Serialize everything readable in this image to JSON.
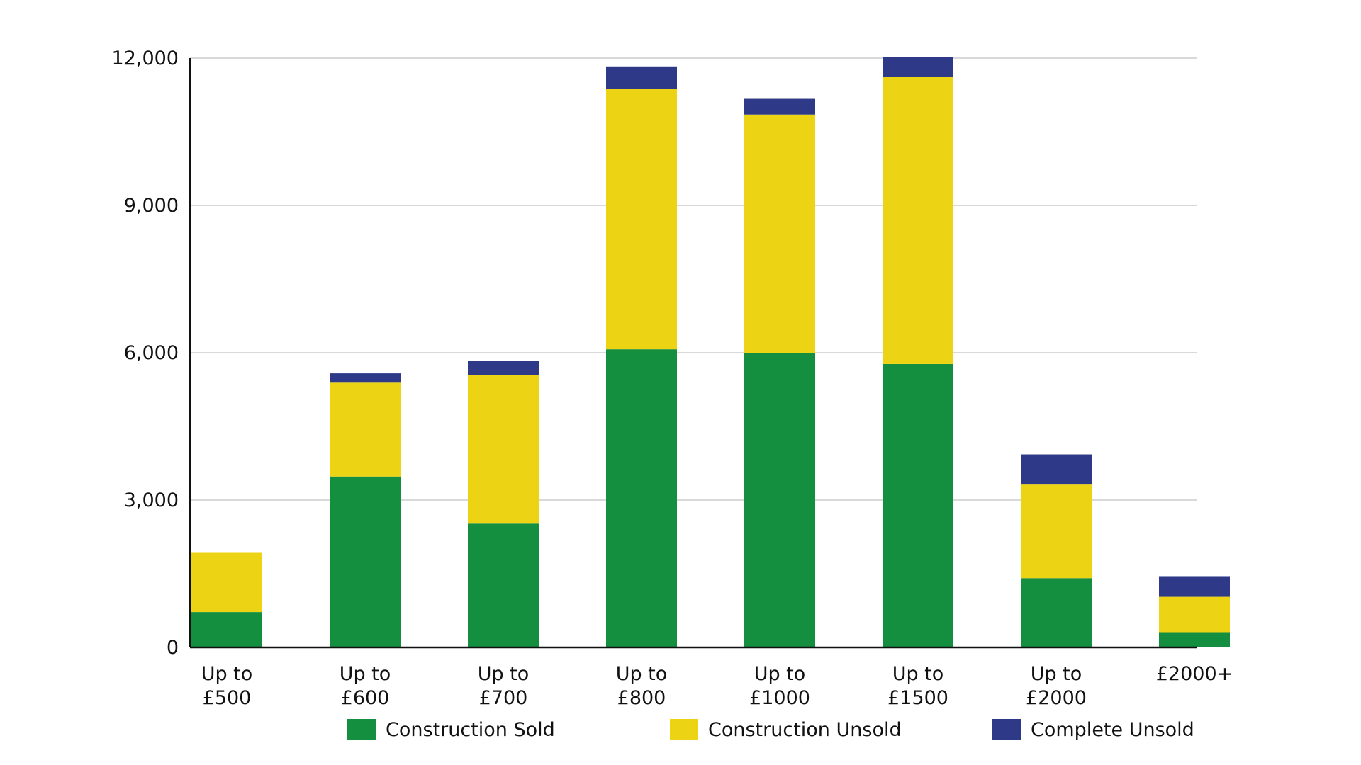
{
  "chart_data": {
    "type": "bar",
    "stacked": true,
    "categories": [
      [
        "Up to",
        "£500"
      ],
      [
        "Up to",
        "£600"
      ],
      [
        "Up to",
        "£700"
      ],
      [
        "Up to",
        "£800"
      ],
      [
        "Up to",
        "£1000"
      ],
      [
        "Up to",
        "£1500"
      ],
      [
        "Up to",
        "£2000"
      ],
      [
        "£2000+"
      ]
    ],
    "series": [
      {
        "name": "Construction Sold",
        "color": "#138f3f",
        "values": [
          720,
          3480,
          2520,
          6070,
          6000,
          5770,
          1410,
          310
        ]
      },
      {
        "name": "Construction Unsold",
        "color": "#ecd414",
        "values": [
          1220,
          1910,
          3020,
          5300,
          4850,
          5850,
          1920,
          720
        ]
      },
      {
        "name": "Complete Unsold",
        "color": "#2e3a87",
        "values": [
          0,
          190,
          290,
          460,
          320,
          400,
          600,
          420
        ]
      }
    ],
    "ylim": [
      0,
      12000
    ],
    "yticks": [
      "0",
      "3,000",
      "6,000",
      "9,000",
      "12,000"
    ],
    "ytick_values": [
      0,
      3000,
      6000,
      9000,
      12000
    ],
    "grid": true,
    "legend_position": "bottom",
    "title": "",
    "xlabel": "",
    "ylabel": ""
  }
}
